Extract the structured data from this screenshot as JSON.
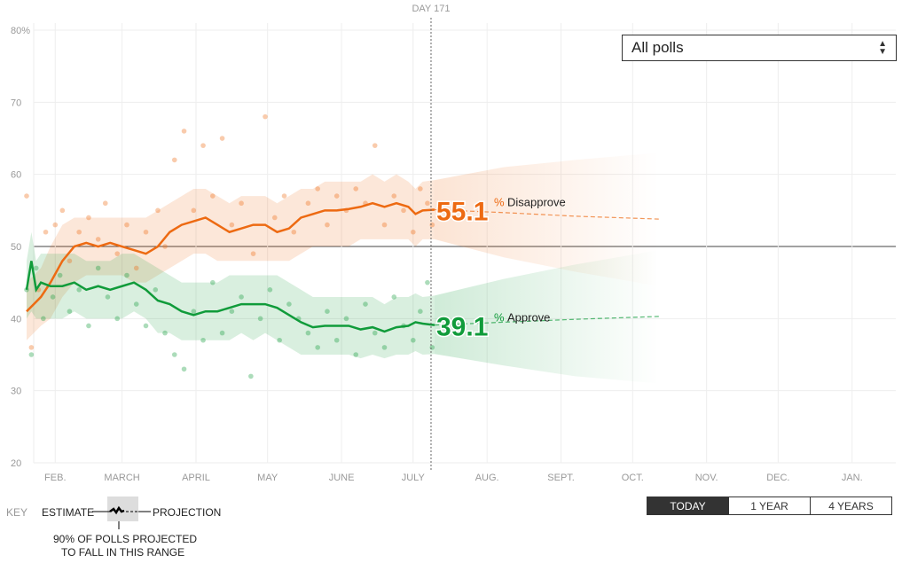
{
  "controls": {
    "poll_filter": "All polls",
    "ranges": [
      "TODAY",
      "1 YEAR",
      "4 YEARS"
    ],
    "active_range": "TODAY"
  },
  "key": {
    "label": "KEY",
    "estimate": "ESTIMATE",
    "projection": "PROJECTION",
    "range_note_1": "90% OF POLLS PROJECTED",
    "range_note_2": "TO FALL IN THIS RANGE"
  },
  "chart_data": {
    "type": "line",
    "today_label": "DAY 171",
    "today_day": 171,
    "ylim": [
      20,
      80
    ],
    "yticks": [
      20,
      30,
      40,
      50,
      60,
      70,
      80
    ],
    "ytick_labels": [
      "20",
      "30",
      "40",
      "50",
      "60",
      "70",
      "80%"
    ],
    "xticks": [
      {
        "day": 12,
        "label": "FEB."
      },
      {
        "day": 40,
        "label": "MARCH"
      },
      {
        "day": 71,
        "label": "APRIL"
      },
      {
        "day": 101,
        "label": "MAY"
      },
      {
        "day": 132,
        "label": "JUNE"
      },
      {
        "day": 162,
        "label": "JULY"
      },
      {
        "day": 193,
        "label": "AUG."
      },
      {
        "day": 224,
        "label": "SEPT."
      },
      {
        "day": 254,
        "label": "OCT."
      },
      {
        "day": 285,
        "label": "NOV."
      },
      {
        "day": 315,
        "label": "DEC."
      },
      {
        "day": 346,
        "label": "JAN."
      }
    ],
    "series": [
      {
        "name": "Disapprove",
        "color": "#ed6a12",
        "final": "55.1",
        "days": [
          0,
          3,
          6,
          10,
          15,
          20,
          25,
          30,
          35,
          40,
          45,
          50,
          55,
          60,
          65,
          70,
          75,
          80,
          85,
          90,
          95,
          100,
          105,
          110,
          115,
          120,
          125,
          130,
          135,
          140,
          145,
          150,
          155,
          160,
          163,
          166,
          171
        ],
        "values": [
          41,
          42,
          43,
          45,
          48,
          50,
          50.5,
          50,
          50.5,
          50,
          49.5,
          49,
          50,
          52,
          53,
          53.5,
          54,
          53,
          52,
          52.5,
          53,
          53,
          52,
          52.5,
          54,
          54.5,
          55,
          55,
          55.2,
          55.5,
          56,
          55.5,
          56,
          55.5,
          54.5,
          55,
          55.1
        ],
        "band_low": [
          37,
          38,
          39,
          40,
          43,
          45,
          46,
          46,
          46,
          46,
          45,
          45,
          46,
          47,
          48,
          49,
          49,
          48,
          48,
          48,
          48,
          48,
          48,
          48,
          49,
          50,
          50,
          50,
          50,
          51,
          51,
          51,
          51,
          51,
          50,
          51,
          51
        ],
        "band_high": [
          45,
          46,
          47,
          50,
          53,
          54,
          54,
          54,
          54,
          54,
          54,
          54,
          55,
          56,
          57,
          58,
          58,
          57,
          56,
          57,
          57,
          57,
          56,
          57,
          58,
          58,
          59,
          59,
          59,
          59,
          60,
          59,
          60,
          59,
          58,
          59,
          59.2
        ],
        "projection": {
          "days": [
            171,
            200,
            230,
            265
          ],
          "values": [
            55.1,
            54.7,
            54.2,
            53.8
          ],
          "low": [
            51,
            48.5,
            46.5,
            44.5
          ],
          "high": [
            59.2,
            61,
            62,
            63
          ]
        }
      },
      {
        "name": "Approve",
        "color": "#109b3a",
        "final": "39.1",
        "days": [
          0,
          2,
          4,
          6,
          10,
          15,
          20,
          25,
          30,
          35,
          40,
          45,
          50,
          55,
          60,
          65,
          70,
          75,
          80,
          85,
          90,
          95,
          100,
          105,
          110,
          115,
          120,
          125,
          130,
          135,
          140,
          145,
          150,
          155,
          160,
          163,
          166,
          171
        ],
        "values": [
          44,
          48,
          44,
          45,
          44.5,
          44.5,
          45,
          44,
          44.5,
          44,
          44.5,
          45,
          44,
          42.5,
          42,
          41,
          40.5,
          41,
          41,
          41.5,
          42,
          42,
          42,
          41.5,
          40.5,
          39.5,
          38.8,
          39,
          39,
          39,
          38.5,
          38.8,
          38.2,
          38.8,
          39,
          39.5,
          39.3,
          39.1
        ],
        "band_low": [
          40,
          41,
          40,
          40,
          40,
          40,
          41,
          40,
          40,
          40,
          40,
          41,
          40,
          38,
          38,
          37,
          37,
          37,
          37,
          37,
          38,
          37,
          38,
          37,
          36,
          35,
          35,
          35,
          35,
          35,
          34.5,
          35,
          34.5,
          35,
          35,
          35.5,
          35,
          35.1
        ],
        "band_high": [
          48,
          52,
          48,
          49,
          49,
          49,
          49,
          48,
          48,
          48,
          49,
          49,
          48,
          47,
          46,
          45,
          45,
          45,
          45,
          46,
          46,
          46,
          46,
          46,
          45,
          44,
          43,
          43,
          43,
          43,
          43,
          43,
          42,
          43,
          43,
          43.5,
          43,
          43.2
        ],
        "projection": {
          "days": [
            171,
            200,
            230,
            265
          ],
          "values": [
            39.1,
            39.5,
            39.9,
            40.3
          ],
          "low": [
            35.1,
            33.5,
            32,
            31
          ],
          "high": [
            43.2,
            45.5,
            47.5,
            49.5
          ]
        }
      }
    ],
    "polls": {
      "Disapprove": [
        [
          0,
          57
        ],
        [
          2,
          36
        ],
        [
          5,
          44
        ],
        [
          8,
          52
        ],
        [
          12,
          53
        ],
        [
          15,
          55
        ],
        [
          18,
          48
        ],
        [
          22,
          52
        ],
        [
          26,
          54
        ],
        [
          30,
          51
        ],
        [
          33,
          56
        ],
        [
          38,
          49
        ],
        [
          42,
          53
        ],
        [
          46,
          47
        ],
        [
          50,
          52
        ],
        [
          55,
          55
        ],
        [
          58,
          50
        ],
        [
          62,
          62
        ],
        [
          66,
          66
        ],
        [
          70,
          55
        ],
        [
          74,
          64
        ],
        [
          78,
          57
        ],
        [
          82,
          65
        ],
        [
          86,
          53
        ],
        [
          90,
          56
        ],
        [
          95,
          49
        ],
        [
          100,
          68
        ],
        [
          104,
          54
        ],
        [
          108,
          57
        ],
        [
          112,
          52
        ],
        [
          118,
          56
        ],
        [
          122,
          58
        ],
        [
          126,
          53
        ],
        [
          130,
          57
        ],
        [
          134,
          55
        ],
        [
          138,
          58
        ],
        [
          142,
          56
        ],
        [
          146,
          64
        ],
        [
          150,
          53
        ],
        [
          154,
          57
        ],
        [
          158,
          55
        ],
        [
          162,
          52
        ],
        [
          165,
          58
        ],
        [
          168,
          56
        ],
        [
          170,
          53
        ]
      ],
      "Approve": [
        [
          0,
          44
        ],
        [
          2,
          35
        ],
        [
          4,
          47
        ],
        [
          7,
          40
        ],
        [
          11,
          43
        ],
        [
          14,
          46
        ],
        [
          18,
          41
        ],
        [
          22,
          44
        ],
        [
          26,
          39
        ],
        [
          30,
          47
        ],
        [
          34,
          43
        ],
        [
          38,
          40
        ],
        [
          42,
          46
        ],
        [
          46,
          42
        ],
        [
          50,
          39
        ],
        [
          54,
          44
        ],
        [
          58,
          38
        ],
        [
          62,
          35
        ],
        [
          66,
          33
        ],
        [
          70,
          41
        ],
        [
          74,
          37
        ],
        [
          78,
          45
        ],
        [
          82,
          38
        ],
        [
          86,
          41
        ],
        [
          90,
          43
        ],
        [
          94,
          32
        ],
        [
          98,
          40
        ],
        [
          102,
          44
        ],
        [
          106,
          37
        ],
        [
          110,
          42
        ],
        [
          114,
          40
        ],
        [
          118,
          38
        ],
        [
          122,
          36
        ],
        [
          126,
          41
        ],
        [
          130,
          37
        ],
        [
          134,
          40
        ],
        [
          138,
          35
        ],
        [
          142,
          42
        ],
        [
          146,
          38
        ],
        [
          150,
          36
        ],
        [
          154,
          43
        ],
        [
          158,
          39
        ],
        [
          162,
          37
        ],
        [
          165,
          41
        ],
        [
          168,
          45
        ],
        [
          170,
          36
        ]
      ]
    }
  }
}
